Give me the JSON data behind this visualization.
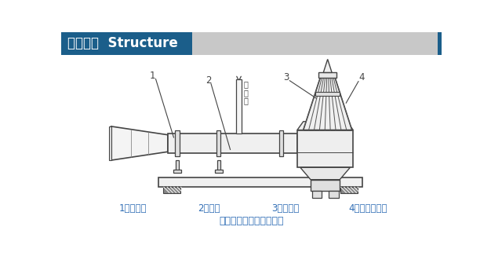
{
  "title_text": "结构简介  Structure",
  "title_bg_color": "#1b5e8a",
  "title_text_color": "#ffffff",
  "header_bg_color": "#c8c8c8",
  "bg_color": "#ffffff",
  "line_color": "#444444",
  "blue_color": "#2f6db5",
  "label1": "1、扩散管",
  "label2": "2、机座",
  "label3": "3、射流器",
  "label4": "4、潜水排污泵",
  "caption": "潜水射流式曝气机结构图",
  "num1": "1",
  "num2": "2",
  "num3": "3",
  "num4": "4",
  "air_label": "吸\n气\n口"
}
